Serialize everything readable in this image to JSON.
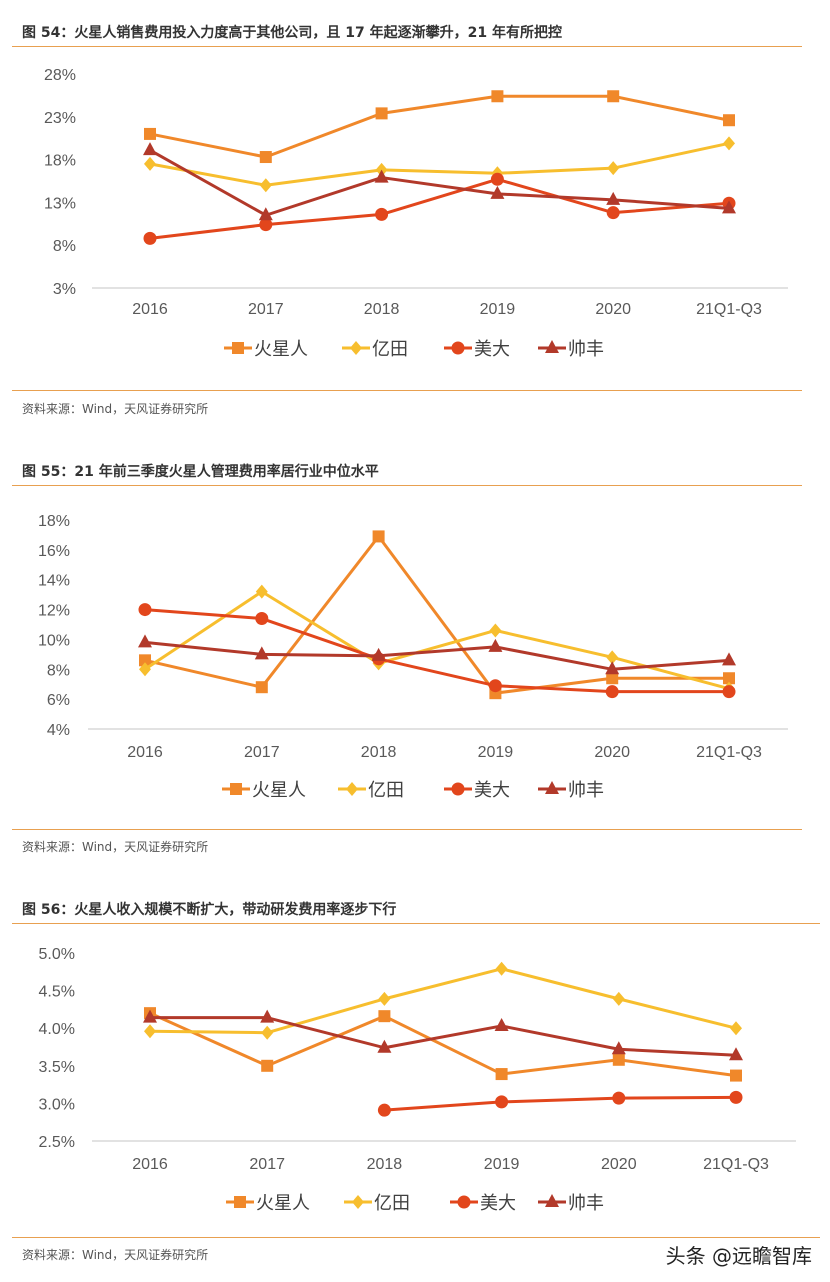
{
  "colors": {
    "火星人": "#F0882A",
    "亿田": "#F7BE2E",
    "美大": "#E2461C",
    "帅丰": "#B2392A",
    "rule": "#E8A050"
  },
  "watermark": "头条 @远瞻智库",
  "chart_data": [
    {
      "type": "line",
      "title": "图 54：火星人销售费用投入力度高于其他公司，且 17 年起逐渐攀升，21 年有所把控",
      "source": "资料来源：Wind，天风证券研究所",
      "categories": [
        "2016",
        "2017",
        "2018",
        "2019",
        "2020",
        "21Q1-Q3"
      ],
      "yticks": [
        "3%",
        "8%",
        "13%",
        "18%",
        "23%",
        "28%"
      ],
      "ylim": [
        3,
        28
      ],
      "legend": "bottom",
      "grid": false,
      "series": [
        {
          "name": "火星人",
          "marker": "square",
          "values": [
            21.0,
            18.3,
            23.4,
            25.4,
            25.4,
            22.6
          ]
        },
        {
          "name": "亿田",
          "marker": "diamond",
          "values": [
            17.5,
            15.0,
            16.8,
            16.4,
            17.0,
            19.9
          ]
        },
        {
          "name": "美大",
          "marker": "circle",
          "values": [
            8.8,
            10.4,
            11.6,
            15.7,
            11.8,
            12.9
          ]
        },
        {
          "name": "帅丰",
          "marker": "triangle",
          "values": [
            19.1,
            11.5,
            15.9,
            14.0,
            13.3,
            12.3
          ]
        }
      ]
    },
    {
      "type": "line",
      "title": "图 55：21 年前三季度火星人管理费用率居行业中位水平",
      "source": "资料来源：Wind，天风证券研究所",
      "categories": [
        "2016",
        "2017",
        "2018",
        "2019",
        "2020",
        "21Q1-Q3"
      ],
      "yticks": [
        "4%",
        "6%",
        "8%",
        "10%",
        "12%",
        "14%",
        "16%",
        "18%"
      ],
      "ylim": [
        4,
        18
      ],
      "legend": "bottom",
      "grid": false,
      "series": [
        {
          "name": "火星人",
          "marker": "square",
          "values": [
            8.6,
            6.8,
            16.9,
            6.4,
            7.4,
            7.4
          ]
        },
        {
          "name": "亿田",
          "marker": "diamond",
          "values": [
            8.0,
            13.2,
            8.4,
            10.6,
            8.8,
            6.7
          ]
        },
        {
          "name": "美大",
          "marker": "circle",
          "values": [
            12.0,
            11.4,
            8.7,
            6.9,
            6.5,
            6.5
          ]
        },
        {
          "name": "帅丰",
          "marker": "triangle",
          "values": [
            9.8,
            9.0,
            8.9,
            9.5,
            8.0,
            8.6
          ]
        }
      ]
    },
    {
      "type": "line",
      "title": "图 56：火星人收入规模不断扩大，带动研发费用率逐步下行",
      "source": "资料来源：Wind，天风证券研究所",
      "categories": [
        "2016",
        "2017",
        "2018",
        "2019",
        "2020",
        "21Q1-Q3"
      ],
      "yticks": [
        "2.5%",
        "3.0%",
        "3.5%",
        "4.0%",
        "4.5%",
        "5.0%"
      ],
      "ylim": [
        2.5,
        5.0
      ],
      "legend": "bottom",
      "grid": false,
      "series": [
        {
          "name": "火星人",
          "marker": "square",
          "values": [
            4.2,
            3.5,
            4.16,
            3.39,
            3.58,
            3.37
          ]
        },
        {
          "name": "亿田",
          "marker": "diamond",
          "values": [
            3.96,
            3.94,
            4.39,
            4.79,
            4.39,
            4.0
          ]
        },
        {
          "name": "美大",
          "marker": "circle",
          "values": [
            null,
            null,
            2.91,
            3.02,
            3.07,
            3.08
          ]
        },
        {
          "name": "帅丰",
          "marker": "triangle",
          "values": [
            4.14,
            4.14,
            3.74,
            4.03,
            3.72,
            3.64
          ]
        }
      ]
    }
  ]
}
